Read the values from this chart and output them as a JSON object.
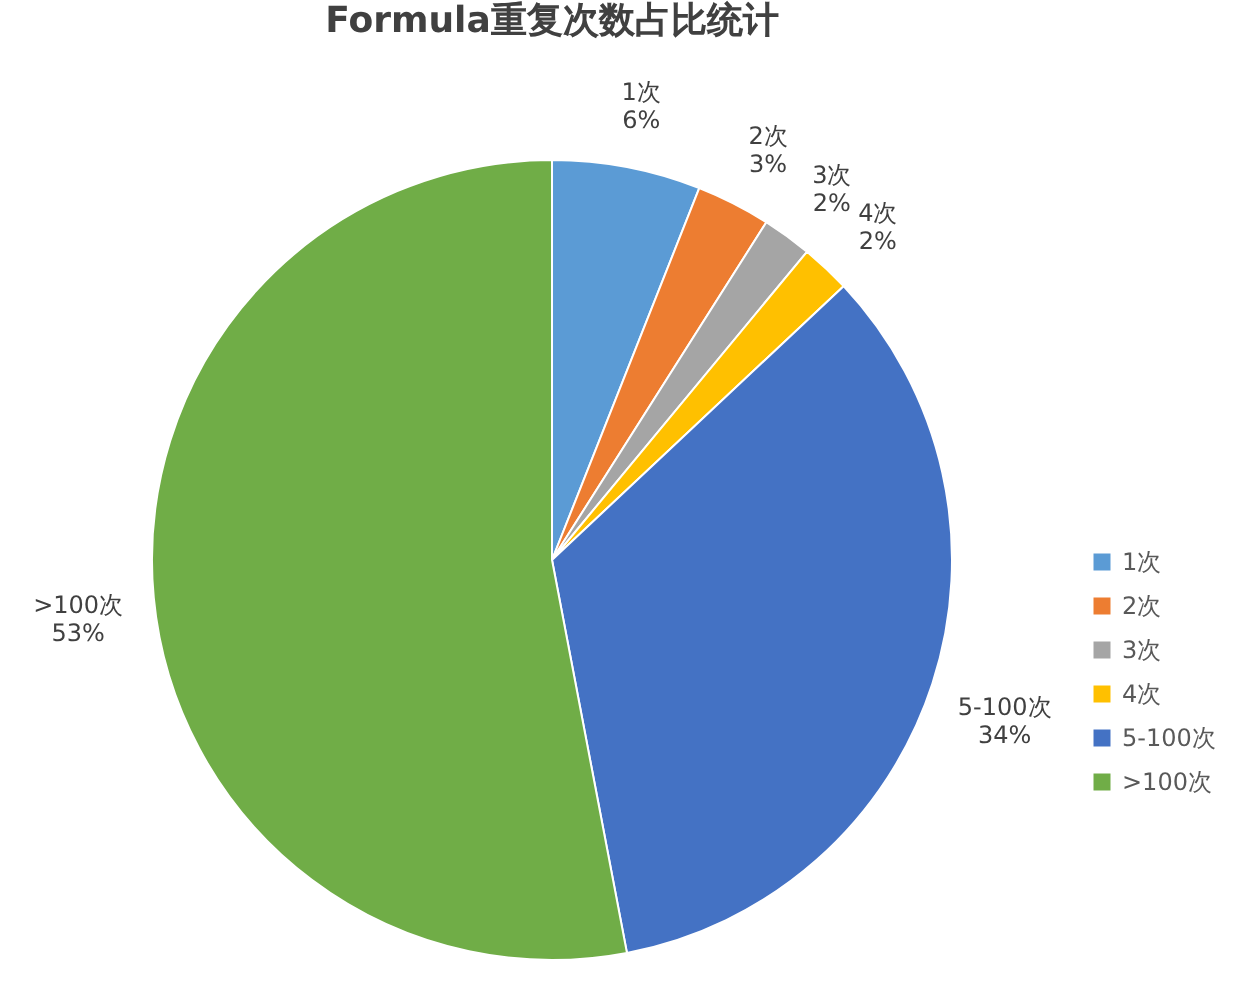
{
  "chart_data": {
    "type": "pie",
    "title": "Formula重复次数占比统计",
    "categories": [
      "1次",
      "2次",
      "3次",
      "4次",
      "5-100次",
      ">100次"
    ],
    "values": [
      6,
      3,
      2,
      2,
      34,
      53
    ],
    "value_labels": [
      "6%",
      "3%",
      "2%",
      "2%",
      "34%",
      "53%"
    ],
    "colors": [
      "#5b9bd5",
      "#ed7d31",
      "#a5a5a5",
      "#ffc000",
      "#4472c4",
      "#70ad47"
    ],
    "legend": "right"
  }
}
